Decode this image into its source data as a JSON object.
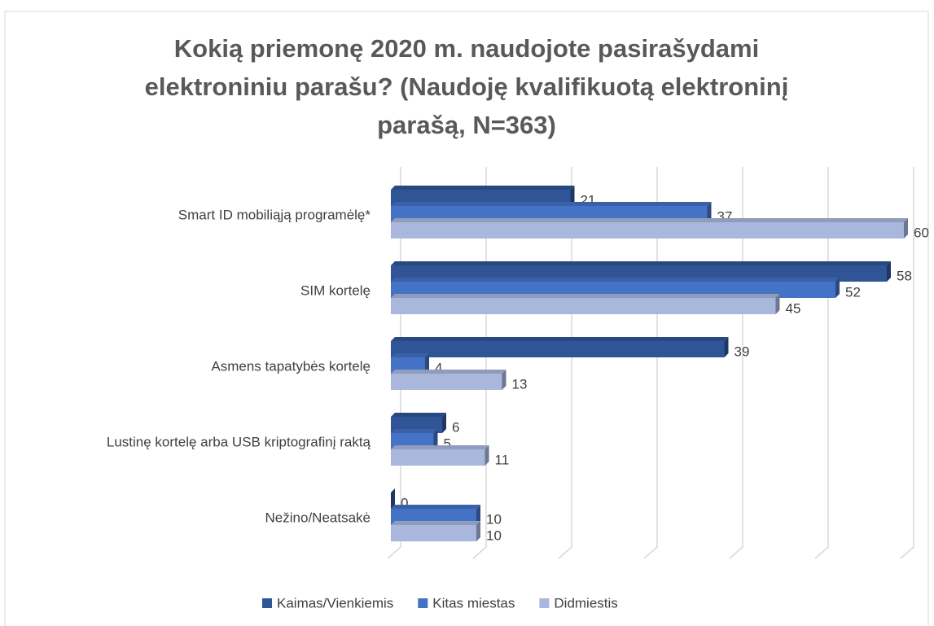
{
  "chart_data": {
    "type": "bar",
    "orientation": "horizontal",
    "title_lines": [
      "Kokią priemonę 2020 m. naudojote pasirašydami",
      "elektroniniu parašu? (Naudoję kvalifikuotą elektroninį",
      "parašą, N=363)"
    ],
    "categories": [
      "Smart ID mobiliąją programėlę*",
      "SIM kortelę",
      "Asmens tapatybės kortelę",
      "Lustinę kortelę arba USB kriptografinį raktą",
      "Nežino/Neatsakė"
    ],
    "series": [
      {
        "name": "Kaimas/Vienkiemis",
        "color": "#2f5597",
        "values": [
          21,
          58,
          39,
          6,
          0
        ]
      },
      {
        "name": "Kitas miestas",
        "color": "#4472c4",
        "values": [
          37,
          52,
          4,
          5,
          10
        ]
      },
      {
        "name": "Didmiestis",
        "color": "#a9b7dd",
        "values": [
          60,
          45,
          13,
          11,
          10
        ]
      }
    ],
    "xlim": [
      0,
      60
    ],
    "xticks": [
      0,
      10,
      20,
      30,
      40,
      50,
      60
    ],
    "grid": true,
    "legend": "bottom"
  }
}
